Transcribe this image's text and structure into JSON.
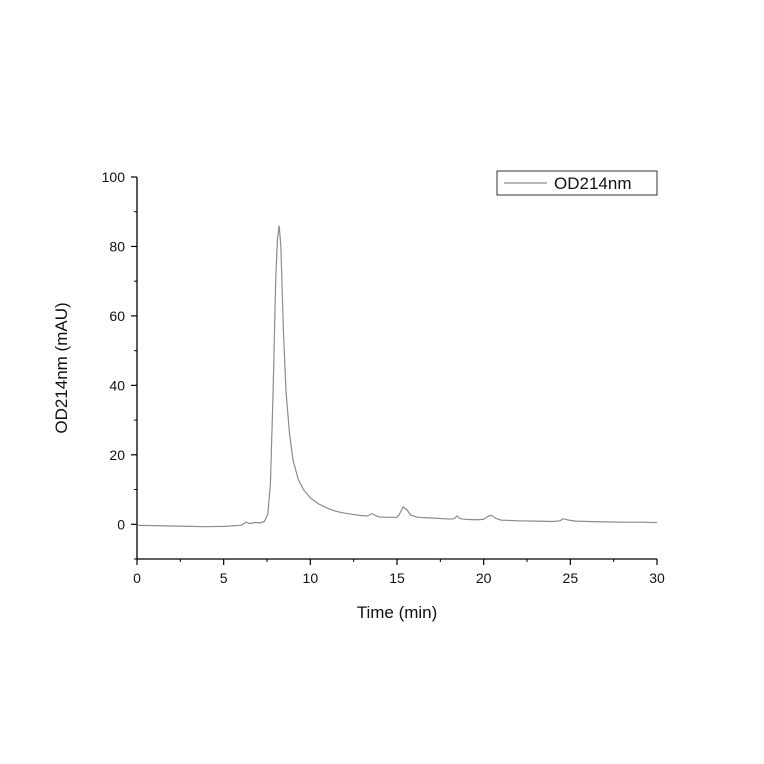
{
  "chart_data": {
    "type": "line",
    "title": "",
    "xlabel": "Time (min)",
    "ylabel": "OD214nm (mAU)",
    "xlim": [
      0,
      30
    ],
    "ylim": [
      -10,
      100
    ],
    "x_ticks": [
      0,
      5,
      10,
      15,
      20,
      25,
      30
    ],
    "y_ticks": [
      0,
      20,
      40,
      60,
      80,
      100
    ],
    "x_tick_labels": [
      "0",
      "5",
      "10",
      "15",
      "20",
      "25",
      "30"
    ],
    "y_tick_labels": [
      "0",
      "20",
      "40",
      "60",
      "80",
      "100"
    ],
    "grid": false,
    "legend_position": "top-right",
    "line_color": "#8c8c8c",
    "series": [
      {
        "name": "OD214nm",
        "points": [
          [
            0,
            -0.3
          ],
          [
            1,
            -0.4
          ],
          [
            2,
            -0.5
          ],
          [
            3,
            -0.6
          ],
          [
            4,
            -0.7
          ],
          [
            5,
            -0.6
          ],
          [
            6.0,
            -0.3
          ],
          [
            6.3,
            0.6
          ],
          [
            6.5,
            0.2
          ],
          [
            6.8,
            0.5
          ],
          [
            7.1,
            0.4
          ],
          [
            7.35,
            0.8
          ],
          [
            7.55,
            3
          ],
          [
            7.7,
            12
          ],
          [
            7.85,
            38
          ],
          [
            8.0,
            70
          ],
          [
            8.1,
            82
          ],
          [
            8.2,
            86
          ],
          [
            8.3,
            80
          ],
          [
            8.45,
            55
          ],
          [
            8.6,
            38
          ],
          [
            8.8,
            26
          ],
          [
            9.0,
            18.5
          ],
          [
            9.3,
            13
          ],
          [
            9.6,
            10
          ],
          [
            10.0,
            7.6
          ],
          [
            10.5,
            5.8
          ],
          [
            11.0,
            4.6
          ],
          [
            11.5,
            3.7
          ],
          [
            12.0,
            3.2
          ],
          [
            12.5,
            2.8
          ],
          [
            13.0,
            2.5
          ],
          [
            13.3,
            2.4
          ],
          [
            13.55,
            3.1
          ],
          [
            13.8,
            2.4
          ],
          [
            14.0,
            2.1
          ],
          [
            14.5,
            2.0
          ],
          [
            15.0,
            2.0
          ],
          [
            15.15,
            3.0
          ],
          [
            15.35,
            5.0
          ],
          [
            15.55,
            4.3
          ],
          [
            15.8,
            2.6
          ],
          [
            16.2,
            2.0
          ],
          [
            17.0,
            1.8
          ],
          [
            18.0,
            1.5
          ],
          [
            18.3,
            1.6
          ],
          [
            18.45,
            2.4
          ],
          [
            18.65,
            1.6
          ],
          [
            19.0,
            1.4
          ],
          [
            19.5,
            1.3
          ],
          [
            20.0,
            1.4
          ],
          [
            20.25,
            2.3
          ],
          [
            20.45,
            2.6
          ],
          [
            20.7,
            1.7
          ],
          [
            21.0,
            1.2
          ],
          [
            22.0,
            1.0
          ],
          [
            23.0,
            0.9
          ],
          [
            24.0,
            0.8
          ],
          [
            24.4,
            1.0
          ],
          [
            24.6,
            1.6
          ],
          [
            24.9,
            1.2
          ],
          [
            25.3,
            0.9
          ],
          [
            26.0,
            0.8
          ],
          [
            27.0,
            0.7
          ],
          [
            28.0,
            0.6
          ],
          [
            29.0,
            0.6
          ],
          [
            30.0,
            0.5
          ]
        ]
      }
    ]
  }
}
